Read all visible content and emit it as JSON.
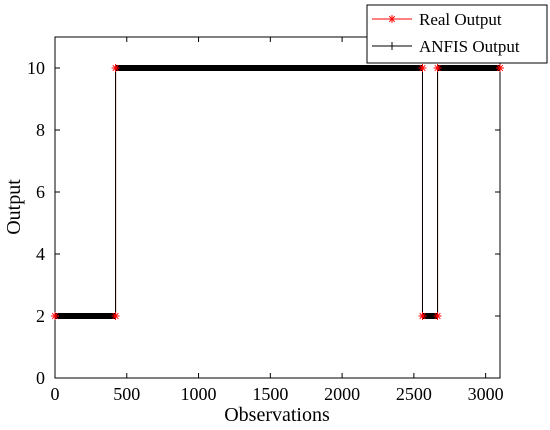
{
  "chart_data": {
    "type": "line",
    "xlabel": "Observations",
    "ylabel": "Output",
    "xlim": [
      0,
      3100
    ],
    "ylim": [
      0,
      11
    ],
    "xticks": [
      0,
      500,
      1000,
      1500,
      2000,
      2500,
      3000
    ],
    "yticks": [
      0,
      2,
      4,
      6,
      8,
      10
    ],
    "grid": false,
    "legend_position": "top-right",
    "series": [
      {
        "name": "Real Output",
        "color": "#ff0000",
        "marker": "asterisk",
        "segments": [
          {
            "x_start": 0,
            "x_end": 422,
            "y": 2
          },
          {
            "x_start": 422,
            "x_end": 2560,
            "y": 10
          },
          {
            "x_start": 2560,
            "x_end": 2665,
            "y": 2
          },
          {
            "x_start": 2665,
            "x_end": 3100,
            "y": 10
          }
        ]
      },
      {
        "name": "ANFIS Output",
        "color": "#000000",
        "marker": "plus",
        "segments": [
          {
            "x_start": 0,
            "x_end": 422,
            "y": 2
          },
          {
            "x_start": 422,
            "x_end": 2560,
            "y": 10
          },
          {
            "x_start": 2560,
            "x_end": 2665,
            "y": 2
          },
          {
            "x_start": 2665,
            "x_end": 3100,
            "y": 10
          }
        ]
      }
    ]
  }
}
